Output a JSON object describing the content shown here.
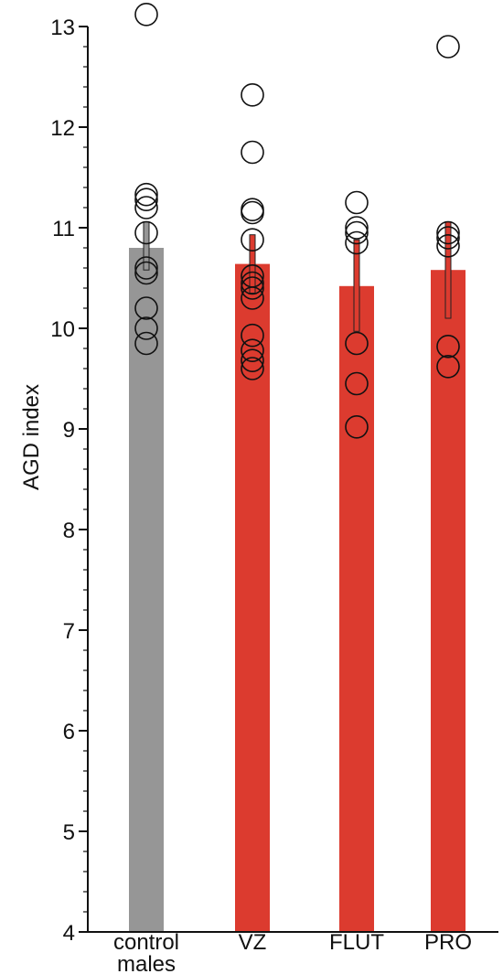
{
  "chart_data": {
    "type": "bar",
    "title": "",
    "xlabel": "",
    "ylabel": "AGD index",
    "ylim": [
      4,
      13
    ],
    "yticks": [
      "4",
      "5",
      "6",
      "7",
      "8",
      "9",
      "10",
      "11",
      "12",
      "13"
    ],
    "grid": false,
    "legend": "none",
    "categories": [
      {
        "line1": "control",
        "line2": "males"
      },
      {
        "line1": "VZ",
        "line2": ""
      },
      {
        "line1": "FLUT",
        "line2": ""
      },
      {
        "line1": "PRO",
        "line2": ""
      }
    ],
    "bars": [
      {
        "mean": 10.8,
        "err_low": 10.58,
        "err_high": 11.06,
        "color": "#969696",
        "points": [
          13.12,
          11.33,
          11.28,
          11.2,
          10.95,
          10.6,
          10.55,
          10.2,
          10.0,
          9.85
        ]
      },
      {
        "mean": 10.64,
        "err_low": 10.35,
        "err_high": 10.93,
        "color": "#dc3b2f",
        "points": [
          12.32,
          11.75,
          11.18,
          11.15,
          10.88,
          10.52,
          10.45,
          10.4,
          10.3,
          9.93,
          9.78,
          9.68,
          9.6
        ]
      },
      {
        "mean": 10.42,
        "err_low": 9.97,
        "err_high": 10.88,
        "color": "#dc3b2f",
        "points": [
          11.25,
          11.0,
          10.95,
          10.85,
          9.85,
          9.45,
          9.02
        ]
      },
      {
        "mean": 10.58,
        "err_low": 10.1,
        "err_high": 11.06,
        "color": "#dc3b2f",
        "points": [
          12.8,
          10.95,
          10.9,
          10.82,
          9.82,
          9.62
        ]
      }
    ]
  }
}
